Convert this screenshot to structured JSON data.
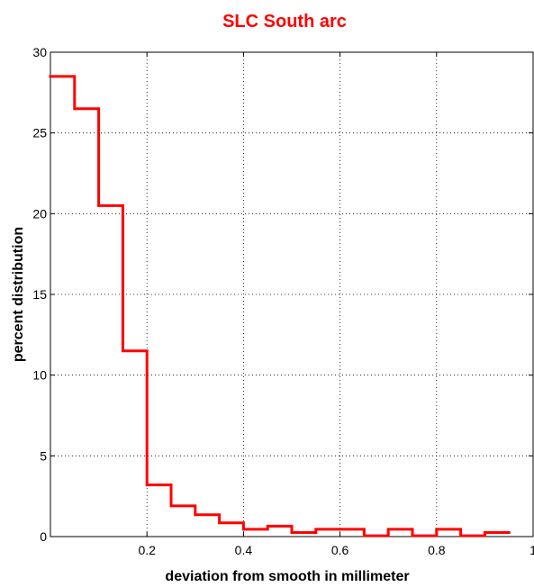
{
  "chart_data": {
    "type": "bar",
    "style": "step-histogram",
    "title": "SLC  South arc",
    "xlabel": "deviation from smooth in millimeter",
    "ylabel": "percent distribution",
    "xlim": [
      0,
      1
    ],
    "ylim": [
      0,
      30
    ],
    "grid": true,
    "x_ticks": [
      0.2,
      0.4,
      0.6,
      0.8,
      1
    ],
    "x_tick_labels": [
      "0.2",
      "0.4",
      "0.6",
      "0.8",
      "1"
    ],
    "y_ticks": [
      0,
      5,
      10,
      15,
      20,
      25,
      30
    ],
    "y_tick_labels": [
      "0",
      "5",
      "10",
      "15",
      "20",
      "25",
      "30"
    ],
    "bin_width": 0.05,
    "bin_starts": [
      0,
      0.05,
      0.1,
      0.15,
      0.2,
      0.25,
      0.3,
      0.35,
      0.4,
      0.45,
      0.5,
      0.55,
      0.6,
      0.65,
      0.7,
      0.75,
      0.8,
      0.85,
      0.9
    ],
    "values": [
      28.5,
      26.5,
      20.5,
      11.5,
      3.2,
      1.9,
      1.35,
      0.85,
      0.45,
      0.65,
      0.25,
      0.45,
      0.45,
      0.05,
      0.45,
      0.05,
      0.45,
      0.05,
      0.25
    ],
    "colors": {
      "series": "#ff0000",
      "title": "#ff0000",
      "axes": "#000000"
    }
  }
}
